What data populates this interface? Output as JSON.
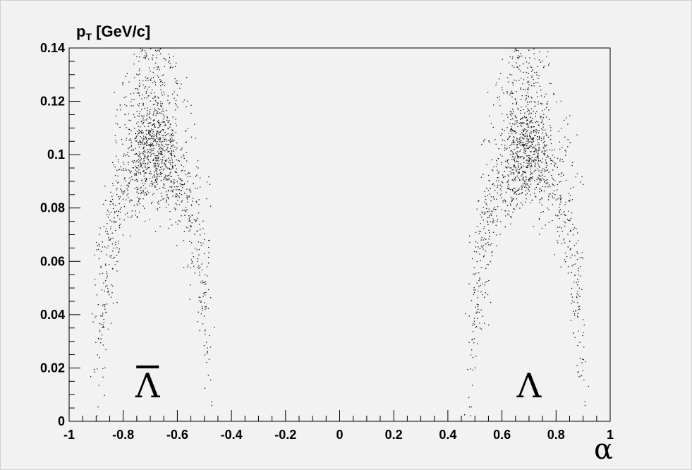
{
  "chart_data": {
    "type": "scatter",
    "ylabel_main": "p",
    "ylabel_sub": "T",
    "ylabel_unit": " [GeV/c]",
    "xlabel": "α",
    "xlim": [
      -1,
      1
    ],
    "ylim": [
      0,
      0.14
    ],
    "x_ticks": [
      -1,
      -0.8,
      -0.6,
      -0.4,
      -0.2,
      0,
      0.2,
      0.4,
      0.6,
      0.8,
      1
    ],
    "x_tick_labels": [
      "-1",
      "-0.8",
      "-0.6",
      "-0.4",
      "-0.2",
      "0",
      "0.2",
      "0.4",
      "0.6",
      "0.8",
      "1"
    ],
    "y_ticks": [
      0,
      0.02,
      0.04,
      0.06,
      0.08,
      0.1,
      0.12,
      0.14
    ],
    "y_tick_labels": [
      "0",
      "0.02",
      "0.04",
      "0.06",
      "0.08",
      "0.1",
      "0.12",
      "0.14"
    ],
    "grid": false,
    "marker_color": "#111111",
    "annotations": [
      {
        "text": "Λ",
        "overbar": true,
        "x": -0.71,
        "y": 0.013
      },
      {
        "text": "Λ",
        "overbar": false,
        "x": 0.7,
        "y": 0.013
      }
    ],
    "series": [
      {
        "arc_center": -0.69,
        "arc_halfwidth": 0.207,
        "peak_pt": 0.101,
        "count": 1500
      },
      {
        "arc_center": 0.69,
        "arc_halfwidth": 0.207,
        "peak_pt": 0.101,
        "count": 1500
      }
    ]
  }
}
